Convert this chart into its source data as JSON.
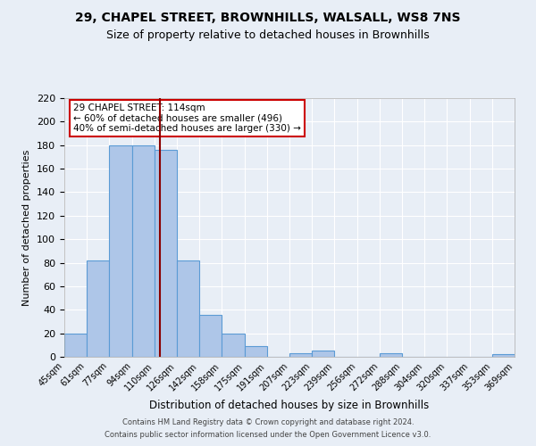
{
  "title": "29, CHAPEL STREET, BROWNHILLS, WALSALL, WS8 7NS",
  "subtitle": "Size of property relative to detached houses in Brownhills",
  "xlabel": "Distribution of detached houses by size in Brownhills",
  "ylabel": "Number of detached properties",
  "footnote1": "Contains HM Land Registry data © Crown copyright and database right 2024.",
  "footnote2": "Contains public sector information licensed under the Open Government Licence v3.0.",
  "bin_edges": [
    45,
    61,
    77,
    94,
    110,
    126,
    142,
    158,
    175,
    191,
    207,
    223,
    239,
    256,
    272,
    288,
    304,
    320,
    337,
    353,
    369
  ],
  "bin_labels": [
    "45sqm",
    "61sqm",
    "77sqm",
    "94sqm",
    "110sqm",
    "126sqm",
    "142sqm",
    "158sqm",
    "175sqm",
    "191sqm",
    "207sqm",
    "223sqm",
    "239sqm",
    "256sqm",
    "272sqm",
    "288sqm",
    "304sqm",
    "320sqm",
    "337sqm",
    "353sqm",
    "369sqm"
  ],
  "bar_heights": [
    20,
    82,
    180,
    180,
    176,
    82,
    36,
    20,
    9,
    0,
    3,
    5,
    0,
    0,
    3,
    0,
    0,
    0,
    0,
    2
  ],
  "bar_color": "#aec6e8",
  "bar_edge_color": "#5b9bd5",
  "background_color": "#e8eef6",
  "grid_color": "#ffffff",
  "red_line_x": 114,
  "annotation_line1": "29 CHAPEL STREET: 114sqm",
  "annotation_line2": "← 60% of detached houses are smaller (496)",
  "annotation_line3": "40% of semi-detached houses are larger (330) →",
  "annotation_box_color": "#ffffff",
  "annotation_box_edge_color": "#cc0000",
  "ylim": [
    0,
    220
  ],
  "yticks": [
    0,
    20,
    40,
    60,
    80,
    100,
    120,
    140,
    160,
    180,
    200,
    220
  ]
}
